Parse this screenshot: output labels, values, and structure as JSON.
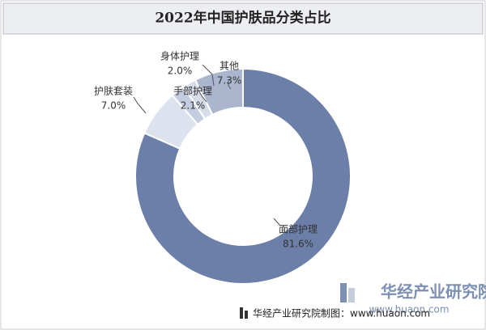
{
  "chart_data": {
    "type": "donut",
    "title": "2022年中国护肤品分类占比",
    "categories": [
      "面部护理",
      "护肤套装",
      "手部护理",
      "身体护理",
      "其他"
    ],
    "values": [
      81.6,
      7.0,
      2.1,
      2.0,
      7.3
    ],
    "value_labels": [
      "81.6%",
      "7.0%",
      "2.1%",
      "2.0%",
      "7.3%"
    ],
    "colors": [
      "#6b7fa8",
      "#dde3ee",
      "#c3cddf",
      "#d6dce8",
      "#a9b6cd"
    ]
  },
  "footer": "华经产业研究院制图：www.huaon.com",
  "logo": {
    "name": "华经产业研究院",
    "url": "www.huaon.com"
  }
}
